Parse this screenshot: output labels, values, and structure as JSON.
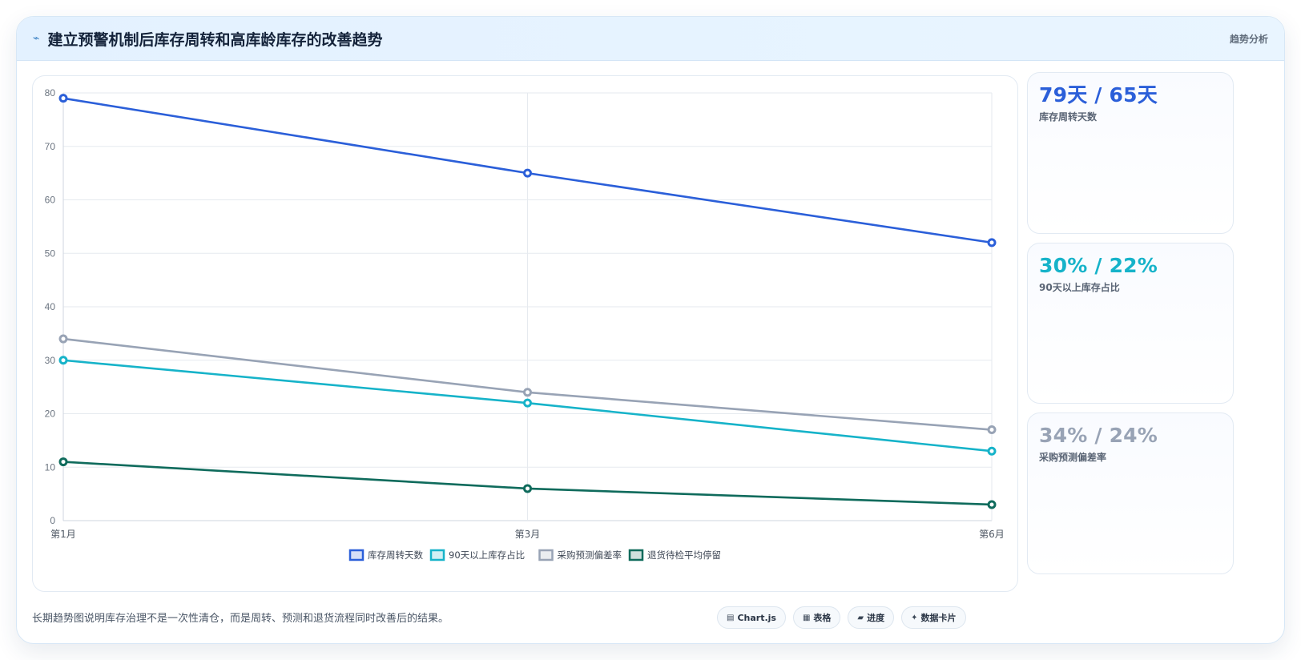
{
  "header": {
    "title": "建立预警机制后库存周转和高库龄库存的改善趋势",
    "tag": "趋势分析"
  },
  "chart_data": {
    "type": "line",
    "categories": [
      "第1月",
      "第3月",
      "第6月"
    ],
    "ylim": [
      0,
      80
    ],
    "yticks": [
      0,
      10,
      20,
      30,
      40,
      50,
      60,
      70,
      80
    ],
    "grid": true,
    "legend_position": "bottom",
    "series": [
      {
        "name": "库存周转天数",
        "values": [
          79,
          65,
          52
        ],
        "color": "#2b5fd9"
      },
      {
        "name": "90天以上库存占比",
        "values": [
          30,
          22,
          13
        ],
        "color": "#16b3c9"
      },
      {
        "name": "采购预测偏差率",
        "values": [
          34,
          24,
          17
        ],
        "color": "#98a3b5"
      },
      {
        "name": "退货待检平均停留",
        "values": [
          11,
          6,
          3
        ],
        "color": "#0f6b5c"
      }
    ]
  },
  "kpis": [
    {
      "value": "79天 / 65天",
      "label": "库存周转天数",
      "color": "#2b5fd9"
    },
    {
      "value": "30% / 22%",
      "label": "90天以上库存占比",
      "color": "#16b3c9"
    },
    {
      "value": "34% / 24%",
      "label": "采购预测偏差率",
      "color": "#98a3b5"
    }
  ],
  "footer": {
    "note": "长期趋势图说明库存治理不是一次性清仓，而是周转、预测和退货流程同时改善后的结果。",
    "pills": [
      {
        "icon": "▤",
        "label": "Chart.js",
        "icon_name": "chart-icon"
      },
      {
        "icon": "▦",
        "label": "表格",
        "icon_name": "table-icon"
      },
      {
        "icon": "▰",
        "label": "进度",
        "icon_name": "progress-icon"
      },
      {
        "icon": "✦",
        "label": "数据卡片",
        "icon_name": "card-icon"
      }
    ]
  }
}
